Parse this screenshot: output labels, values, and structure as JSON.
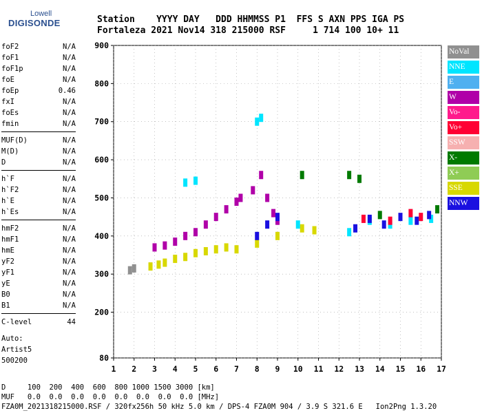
{
  "logo": {
    "top": "Lowell",
    "bottom": "DIGISONDE"
  },
  "header": {
    "row1": "Station    YYYY DAY   DDD HHMMSS P1  FFS S AXN PPS IGA PS",
    "row2": "Fortaleza 2021 Nov14 318 215000 RSF     1 714 100 10+ 11"
  },
  "params": {
    "group1": [
      {
        "label": "foF2",
        "value": "N/A"
      },
      {
        "label": "foF1",
        "value": "N/A"
      },
      {
        "label": "foF1p",
        "value": "N/A"
      },
      {
        "label": "foE",
        "value": "N/A"
      },
      {
        "label": "foEp",
        "value": "0.46"
      },
      {
        "label": "fxI",
        "value": "N/A"
      },
      {
        "label": "foEs",
        "value": "N/A"
      },
      {
        "label": "fmin",
        "value": "N/A"
      }
    ],
    "group2": [
      {
        "label": "MUF(D)",
        "value": "N/A"
      },
      {
        "label": "M(D)",
        "value": "N/A"
      },
      {
        "label": "D",
        "value": "N/A"
      }
    ],
    "group3": [
      {
        "label": "h`F",
        "value": "N/A"
      },
      {
        "label": "h`F2",
        "value": "N/A"
      },
      {
        "label": "h`E",
        "value": "N/A"
      },
      {
        "label": "h`Es",
        "value": "N/A"
      }
    ],
    "group4": [
      {
        "label": "hmF2",
        "value": "N/A"
      },
      {
        "label": "hmF1",
        "value": "N/A"
      },
      {
        "label": "hmE",
        "value": "N/A"
      },
      {
        "label": "yF2",
        "value": "N/A"
      },
      {
        "label": "yF1",
        "value": "N/A"
      },
      {
        "label": "yE",
        "value": "N/A"
      },
      {
        "label": "B0",
        "value": "N/A"
      },
      {
        "label": "B1",
        "value": "N/A"
      }
    ],
    "group5": [
      {
        "label": "C-level",
        "value": "44"
      }
    ]
  },
  "auto": {
    "line1": "Auto:",
    "line2": "Artist5",
    "line3": "500200"
  },
  "footer": {
    "line1": "D     100  200  400  600  800 1000 1500 3000 [km]",
    "line2": "MUF   0.0  0.0  0.0  0.0  0.0  0.0  0.0  0.0 [MHz]",
    "line3": "FZA0M_2021318215000.RSF / 320fx256h 50 kHz 5.0 km / DPS-4 FZA0M 904 / 3.9 S 321.6 E   Ion2Png 1.3.20"
  },
  "legend": [
    {
      "label": "NoVal",
      "color": "#909090"
    },
    {
      "label": "NNE",
      "color": "#00e5ff"
    },
    {
      "label": "E",
      "color": "#4fb0f0"
    },
    {
      "label": "W",
      "color": "#b000a8"
    },
    {
      "label": "Vo-",
      "color": "#ff1a8c"
    },
    {
      "label": "Vo+",
      "color": "#ff0033"
    },
    {
      "label": "SSW",
      "color": "#f6b0b0"
    },
    {
      "label": "X-",
      "color": "#007a00"
    },
    {
      "label": "X+",
      "color": "#8fcc55"
    },
    {
      "label": "SSE",
      "color": "#d8d800"
    },
    {
      "label": "NNW",
      "color": "#1a10e0"
    }
  ],
  "chart_data": {
    "type": "scatter",
    "xlim": [
      1,
      17
    ],
    "ylim": [
      80,
      900
    ],
    "x_ticks": [
      1,
      2,
      3,
      4,
      5,
      6,
      7,
      8,
      9,
      10,
      11,
      12,
      13,
      14,
      15,
      16,
      17
    ],
    "y_ticks": [
      80,
      200,
      300,
      400,
      500,
      600,
      700,
      800,
      900
    ],
    "grid": true,
    "clusters": [
      {
        "color": "W",
        "points": [
          [
            3.0,
            370
          ],
          [
            3.5,
            375
          ],
          [
            4.0,
            385
          ],
          [
            4.5,
            400
          ],
          [
            5.0,
            410
          ],
          [
            5.5,
            430
          ],
          [
            6.0,
            450
          ],
          [
            6.5,
            470
          ],
          [
            7.0,
            490
          ],
          [
            7.2,
            500
          ],
          [
            7.8,
            520
          ],
          [
            8.2,
            560
          ],
          [
            8.5,
            500
          ],
          [
            8.8,
            460
          ],
          [
            9.0,
            440
          ]
        ]
      },
      {
        "color": "SSE",
        "points": [
          [
            2.8,
            320
          ],
          [
            3.2,
            325
          ],
          [
            3.5,
            330
          ],
          [
            4.0,
            340
          ],
          [
            4.5,
            345
          ],
          [
            5.0,
            355
          ],
          [
            5.5,
            360
          ],
          [
            6.0,
            365
          ],
          [
            6.5,
            370
          ],
          [
            7.0,
            365
          ],
          [
            8.0,
            380
          ],
          [
            9.0,
            400
          ],
          [
            10.2,
            420
          ],
          [
            10.8,
            415
          ]
        ]
      },
      {
        "color": "NNE",
        "points": [
          [
            4.5,
            540
          ],
          [
            5.0,
            545
          ],
          [
            8.0,
            700
          ],
          [
            8.2,
            710
          ],
          [
            10.0,
            430
          ],
          [
            12.5,
            410
          ],
          [
            13.5,
            440
          ],
          [
            14.5,
            430
          ],
          [
            15.5,
            440
          ],
          [
            16.5,
            445
          ]
        ]
      },
      {
        "color": "NNW",
        "points": [
          [
            8.0,
            400
          ],
          [
            8.5,
            430
          ],
          [
            9.0,
            450
          ],
          [
            12.8,
            420
          ],
          [
            13.5,
            445
          ],
          [
            14.2,
            430
          ],
          [
            15.0,
            450
          ],
          [
            15.8,
            440
          ],
          [
            16.4,
            455
          ]
        ]
      },
      {
        "color": "X-",
        "points": [
          [
            12.5,
            560
          ],
          [
            13.0,
            550
          ],
          [
            10.2,
            560
          ],
          [
            14.0,
            455
          ],
          [
            16.8,
            470
          ]
        ]
      },
      {
        "color": "Vo+",
        "points": [
          [
            14.5,
            440
          ],
          [
            15.5,
            460
          ],
          [
            16.0,
            450
          ],
          [
            13.2,
            445
          ]
        ]
      },
      {
        "color": "NoVal",
        "points": [
          [
            1.8,
            310
          ],
          [
            2.0,
            315
          ]
        ]
      }
    ]
  }
}
